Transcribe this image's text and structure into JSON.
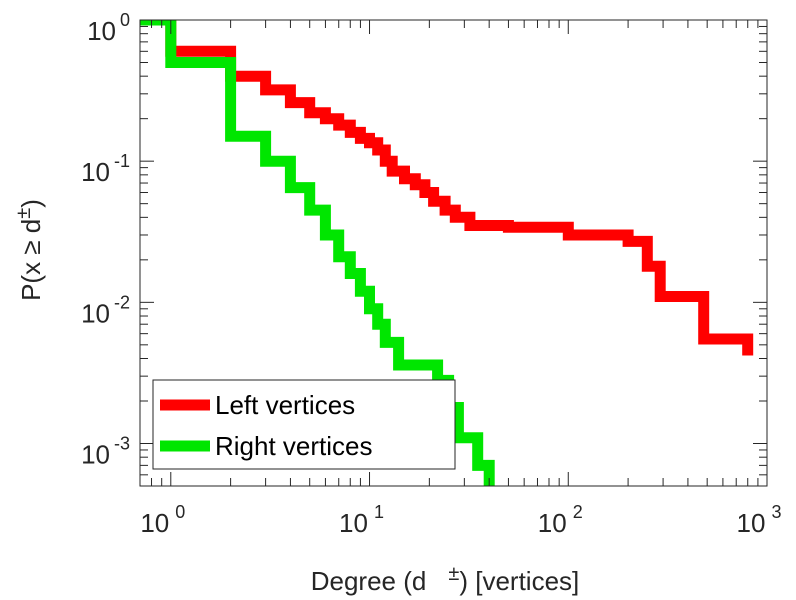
{
  "chart_data": {
    "type": "line",
    "step": true,
    "xscale": "log",
    "yscale": "log",
    "xlim": [
      0.7,
      1000
    ],
    "ylim": [
      0.0005,
      1
    ],
    "grid": false,
    "legend_position": "bottom-left",
    "xlabel": {
      "prefix": "Degree (d",
      "sup": "±",
      "suffix": ") [vertices]"
    },
    "ylabel": {
      "prefix": "P(x ≥ d",
      "sup": "±",
      "suffix": ")"
    },
    "xticks": [
      {
        "value": 1,
        "base": "10",
        "exp": "0"
      },
      {
        "value": 10,
        "base": "10",
        "exp": "1"
      },
      {
        "value": 100,
        "base": "10",
        "exp": "2"
      },
      {
        "value": 1000,
        "base": "10",
        "exp": "3"
      }
    ],
    "yticks": [
      {
        "value": 1,
        "base": "10",
        "exp": "0"
      },
      {
        "value": 0.1,
        "base": "10",
        "exp": "-1"
      },
      {
        "value": 0.01,
        "base": "10",
        "exp": "-2"
      },
      {
        "value": 0.001,
        "base": "10",
        "exp": "-3"
      }
    ],
    "series": [
      {
        "name": "Left vertices",
        "color": "#ff0000",
        "x": [
          0.7,
          1,
          2,
          3,
          4,
          5,
          6,
          7,
          8,
          9,
          10,
          11,
          12,
          13,
          15,
          17,
          19,
          21,
          24,
          27,
          32,
          50,
          100,
          200,
          250,
          290,
          480,
          800
        ],
        "y": [
          1,
          0.6,
          0.4,
          0.32,
          0.26,
          0.22,
          0.2,
          0.18,
          0.16,
          0.145,
          0.135,
          0.12,
          0.1,
          0.085,
          0.075,
          0.068,
          0.06,
          0.052,
          0.045,
          0.04,
          0.035,
          0.034,
          0.03,
          0.027,
          0.018,
          0.011,
          0.0055,
          0.0042
        ]
      },
      {
        "name": "Right vertices",
        "color": "#00e600",
        "x": [
          0.7,
          1,
          2,
          3,
          4,
          5,
          6,
          7,
          8,
          9,
          10,
          11,
          12,
          14,
          22,
          25,
          28,
          35,
          40
        ],
        "y": [
          1,
          0.5,
          0.15,
          0.1,
          0.065,
          0.045,
          0.03,
          0.021,
          0.016,
          0.012,
          0.009,
          0.007,
          0.0052,
          0.0036,
          0.0028,
          0.0018,
          0.0011,
          0.0007,
          0.0005
        ]
      }
    ]
  }
}
